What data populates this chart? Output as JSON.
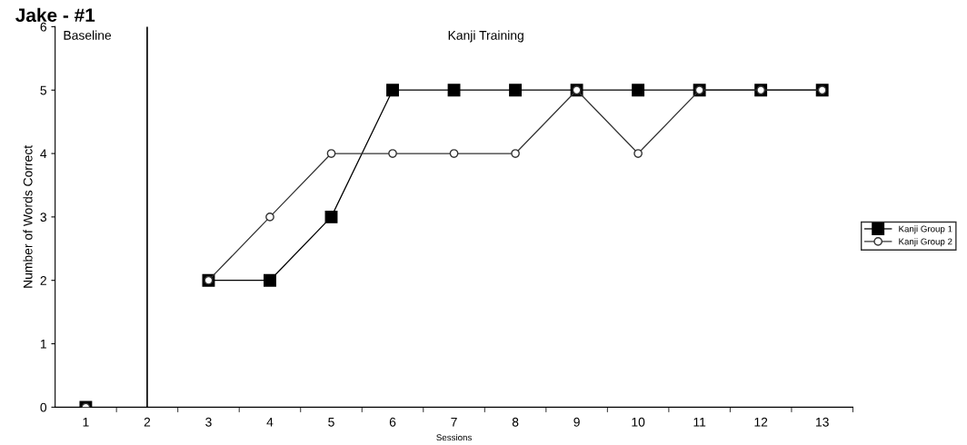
{
  "chart_data": {
    "type": "line",
    "title": "Jake - #1",
    "xlabel": "Sessions",
    "ylabel": "Number of Words Correct",
    "categories": [
      "1",
      "2",
      "3",
      "4",
      "5",
      "6",
      "7",
      "8",
      "9",
      "10",
      "11",
      "12",
      "13"
    ],
    "series": [
      {
        "name": "Kanji Group 1",
        "color": "#000000",
        "marker": "square",
        "values": [
          0,
          null,
          2,
          2,
          3,
          5,
          5,
          5,
          5,
          5,
          5,
          5,
          5
        ]
      },
      {
        "name": "Kanji Group 2",
        "color": "#333333",
        "marker": "circle",
        "values": [
          0,
          null,
          2,
          3,
          4,
          4,
          4,
          4,
          5,
          4,
          5,
          5,
          5
        ]
      }
    ],
    "ylim": [
      0,
      6
    ],
    "yticks": [
      0,
      1,
      2,
      3,
      4,
      5,
      6
    ],
    "ref_lines": [
      {
        "axis": "x",
        "value": "2",
        "color": "#000000",
        "line_style": "solid"
      }
    ],
    "annotations": [
      "Baseline",
      "Kanji Training"
    ],
    "legend": "right",
    "grid": false,
    "line_style": "solid"
  }
}
